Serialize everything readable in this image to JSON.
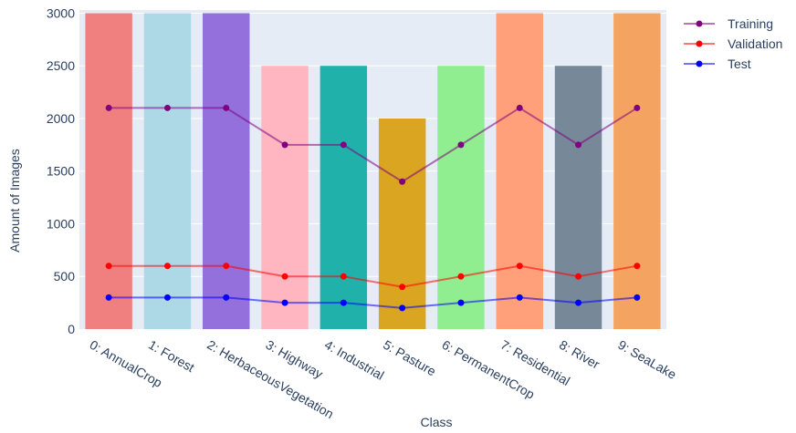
{
  "chart_data": {
    "type": "bar",
    "title": "",
    "xlabel": "Class",
    "ylabel": "Amount of Images",
    "ylim": [
      0,
      3030
    ],
    "yticks": [
      0,
      500,
      1000,
      1500,
      2000,
      2500,
      3000
    ],
    "categories": [
      "0: AnnualCrop",
      "1: Forest",
      "2: HerbaceousVegetation",
      "3: Highway",
      "4: Industrial",
      "5: Pasture",
      "6: PermanentCrop",
      "7: Residential",
      "8: River",
      "9: SeaLake"
    ],
    "bar_values": [
      3000,
      3000,
      3000,
      2500,
      2500,
      2000,
      2500,
      3000,
      2500,
      3000
    ],
    "bar_colors": [
      "#f08080",
      "#add8e6",
      "#9370db",
      "#ffb6c1",
      "#20b2aa",
      "#daa520",
      "#90ee90",
      "#ffa07a",
      "#778899",
      "#f4a460"
    ],
    "series": [
      {
        "name": "Training",
        "color": "#800080",
        "values": [
          2100,
          2100,
          2100,
          1750,
          1750,
          1400,
          1750,
          2100,
          1750,
          2100
        ]
      },
      {
        "name": "Validation",
        "color": "#ff0000",
        "values": [
          600,
          600,
          600,
          500,
          500,
          400,
          500,
          600,
          500,
          600
        ]
      },
      {
        "name": "Test",
        "color": "#0000ff",
        "values": [
          300,
          300,
          300,
          250,
          250,
          200,
          250,
          300,
          250,
          300
        ]
      }
    ],
    "legend_position": "top-right",
    "grid": true,
    "background": "#e5ecf6"
  }
}
